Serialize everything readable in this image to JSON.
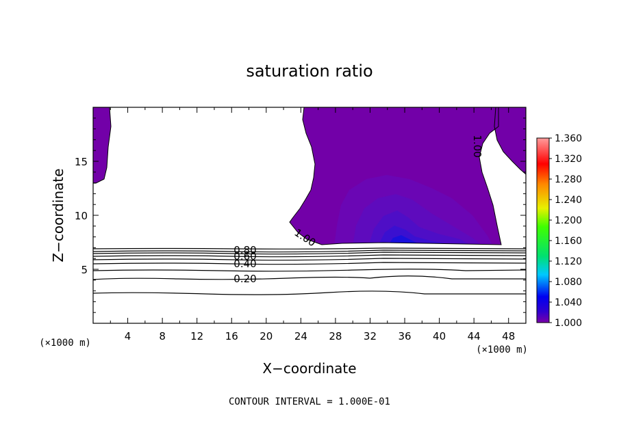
{
  "chart_data": {
    "type": "contour",
    "title": "saturation ratio",
    "xlabel": "X−coordinate",
    "ylabel": "Z−coordinate",
    "x_unit": "(×1000 m)",
    "y_unit": "(×1000 m)",
    "xlim": [
      0,
      50
    ],
    "ylim": [
      0,
      20
    ],
    "xticks": [
      4,
      8,
      12,
      16,
      20,
      24,
      28,
      32,
      36,
      40,
      44,
      48
    ],
    "yticks": [
      5,
      10,
      15
    ],
    "contour_interval": "CONTOUR INTERVAL = 1.000E-01",
    "contour_lines": [
      {
        "z": 2.8,
        "label": ""
      },
      {
        "z": 4.2,
        "label": "0.20"
      },
      {
        "z": 5.5,
        "label": "0.40"
      },
      {
        "z": 6.2,
        "label": "0.60"
      },
      {
        "z": 6.7,
        "label": "0.80"
      },
      {
        "z": 7.0,
        "label": ""
      }
    ],
    "contour_labels_other": [
      "1.00",
      "1.00"
    ],
    "colorbar": {
      "min": 1.0,
      "max": 1.36,
      "ticks": [
        "1.360",
        "1.320",
        "1.280",
        "1.240",
        "1.200",
        "1.160",
        "1.120",
        "1.080",
        "1.040",
        "1.000"
      ]
    },
    "supersaturated_regions": [
      {
        "name": "left-edge",
        "x": [
          0,
          2
        ],
        "z": [
          13,
          20
        ]
      },
      {
        "name": "central-plume",
        "x": [
          22.5,
          47
        ],
        "z": [
          7.2,
          20
        ],
        "min_saturation_ratio": 1.0,
        "max_saturation_ratio": 1.09,
        "peak_location": {
          "x": 35,
          "z": 7.5
        }
      },
      {
        "name": "right-edge",
        "x": [
          46.5,
          50
        ],
        "z": [
          13.5,
          20
        ]
      }
    ]
  },
  "colors": {
    "fill_1_00": "#7200a8",
    "fill_1_01": "#6a06b4",
    "fill_1_02": "#5a0cbe",
    "fill_1_03": "#4a0ec8",
    "fill_1_04": "#3210d2",
    "fill_1_06": "#1010dc",
    "colorbar_stops": [
      "#7a00a8",
      "#0000f0",
      "#00c8ff",
      "#00e060",
      "#40ff00",
      "#e8f000",
      "#ff8800",
      "#ff0000",
      "#ff9c9c"
    ]
  }
}
